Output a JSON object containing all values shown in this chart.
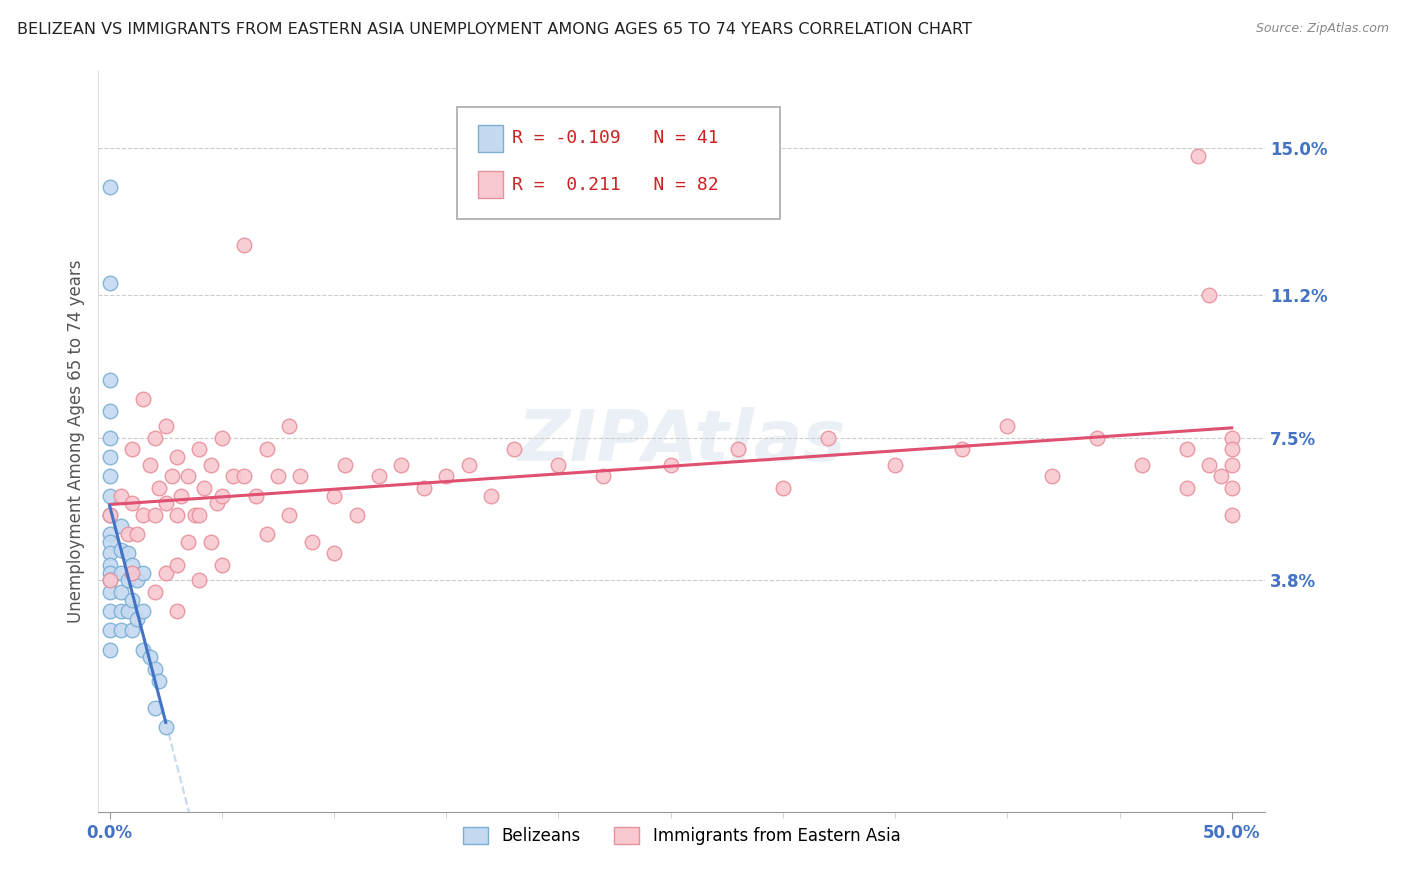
{
  "title": "BELIZEAN VS IMMIGRANTS FROM EASTERN ASIA UNEMPLOYMENT AMONG AGES 65 TO 74 YEARS CORRELATION CHART",
  "source": "Source: ZipAtlas.com",
  "ylabel": "Unemployment Among Ages 65 to 74 years",
  "xlim": [
    -0.005,
    0.515
  ],
  "ylim": [
    -0.022,
    0.17
  ],
  "xtick_positions": [
    0.0,
    0.5
  ],
  "xticklabels": [
    "0.0%",
    "50.0%"
  ],
  "ytick_positions": [
    0.038,
    0.075,
    0.112,
    0.15
  ],
  "ytick_labels": [
    "3.8%",
    "7.5%",
    "11.2%",
    "15.0%"
  ],
  "hlines": [
    0.038,
    0.075,
    0.112,
    0.15
  ],
  "blue_R": -0.109,
  "blue_N": 41,
  "pink_R": 0.211,
  "pink_N": 82,
  "blue_color": "#c5d9f0",
  "pink_color": "#f9c8d0",
  "blue_edge": "#7bafd4",
  "pink_edge": "#e8909c",
  "blue_label": "Belizeans",
  "pink_label": "Immigrants from Eastern Asia",
  "blue_trend_color": "#4472c4",
  "pink_trend_color": "#e05070",
  "dash_color": "#c5d9f0",
  "watermark_color": "#d0d8e8",
  "blue_scatter_x": [
    0.0,
    0.0,
    0.0,
    0.0,
    0.0,
    0.0,
    0.0,
    0.0,
    0.0,
    0.0,
    0.0,
    0.0,
    0.0,
    0.0,
    0.0,
    0.0,
    0.0,
    0.0,
    0.0,
    0.005,
    0.005,
    0.005,
    0.005,
    0.005,
    0.005,
    0.008,
    0.008,
    0.008,
    0.01,
    0.01,
    0.01,
    0.012,
    0.012,
    0.015,
    0.015,
    0.015,
    0.018,
    0.02,
    0.02,
    0.022,
    0.025
  ],
  "blue_scatter_y": [
    0.14,
    0.115,
    0.09,
    0.082,
    0.075,
    0.07,
    0.065,
    0.06,
    0.055,
    0.05,
    0.048,
    0.045,
    0.042,
    0.04,
    0.038,
    0.035,
    0.03,
    0.025,
    0.02,
    0.052,
    0.046,
    0.04,
    0.035,
    0.03,
    0.025,
    0.045,
    0.038,
    0.03,
    0.042,
    0.033,
    0.025,
    0.038,
    0.028,
    0.04,
    0.03,
    0.02,
    0.018,
    0.015,
    0.005,
    0.012,
    0.0
  ],
  "pink_scatter_x": [
    0.0,
    0.0,
    0.005,
    0.008,
    0.01,
    0.01,
    0.01,
    0.012,
    0.015,
    0.015,
    0.018,
    0.02,
    0.02,
    0.02,
    0.022,
    0.025,
    0.025,
    0.025,
    0.028,
    0.03,
    0.03,
    0.03,
    0.03,
    0.032,
    0.035,
    0.035,
    0.038,
    0.04,
    0.04,
    0.04,
    0.042,
    0.045,
    0.045,
    0.048,
    0.05,
    0.05,
    0.05,
    0.055,
    0.06,
    0.06,
    0.065,
    0.07,
    0.07,
    0.075,
    0.08,
    0.08,
    0.085,
    0.09,
    0.1,
    0.1,
    0.105,
    0.11,
    0.12,
    0.13,
    0.14,
    0.15,
    0.16,
    0.17,
    0.18,
    0.2,
    0.22,
    0.25,
    0.28,
    0.3,
    0.32,
    0.35,
    0.38,
    0.4,
    0.42,
    0.44,
    0.46,
    0.48,
    0.48,
    0.485,
    0.49,
    0.49,
    0.495,
    0.5,
    0.5,
    0.5,
    0.5,
    0.5
  ],
  "pink_scatter_y": [
    0.055,
    0.038,
    0.06,
    0.05,
    0.072,
    0.058,
    0.04,
    0.05,
    0.085,
    0.055,
    0.068,
    0.075,
    0.055,
    0.035,
    0.062,
    0.078,
    0.058,
    0.04,
    0.065,
    0.07,
    0.055,
    0.042,
    0.03,
    0.06,
    0.065,
    0.048,
    0.055,
    0.072,
    0.055,
    0.038,
    0.062,
    0.068,
    0.048,
    0.058,
    0.075,
    0.06,
    0.042,
    0.065,
    0.125,
    0.065,
    0.06,
    0.072,
    0.05,
    0.065,
    0.078,
    0.055,
    0.065,
    0.048,
    0.06,
    0.045,
    0.068,
    0.055,
    0.065,
    0.068,
    0.062,
    0.065,
    0.068,
    0.06,
    0.072,
    0.068,
    0.065,
    0.068,
    0.072,
    0.062,
    0.075,
    0.068,
    0.072,
    0.078,
    0.065,
    0.075,
    0.068,
    0.062,
    0.072,
    0.148,
    0.068,
    0.112,
    0.065,
    0.075,
    0.068,
    0.072,
    0.062,
    0.055
  ]
}
